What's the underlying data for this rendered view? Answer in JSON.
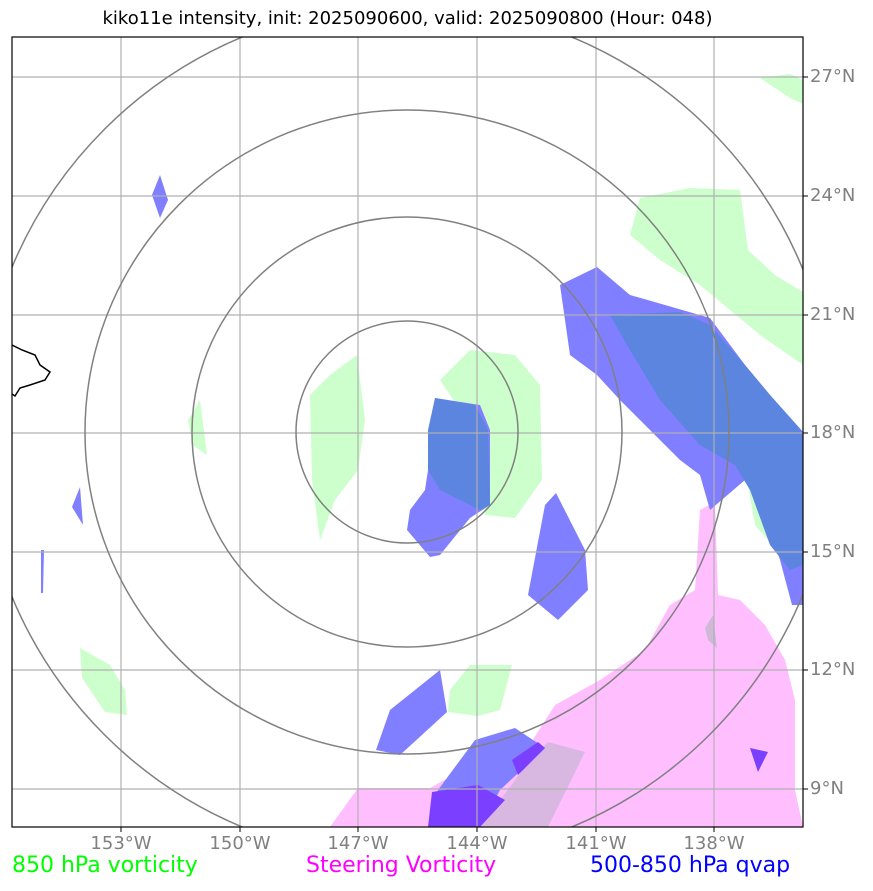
{
  "title": "kiko11e intensity, init: 2025090600, valid: 2025090800 (Hour: 048)",
  "lat_labels": [
    "27°N",
    "24°N",
    "21°N",
    "18°N",
    "15°N",
    "12°N",
    "9°N"
  ],
  "lon_labels": [
    "153°W",
    "150°W",
    "147°W",
    "144°W",
    "141°W",
    "138°W"
  ],
  "legend": {
    "vorticity_850": {
      "label": "850 hPa vorticity",
      "color": "#00ff00"
    },
    "steering": {
      "label": "Steering Vorticity",
      "color": "#ff00ff"
    },
    "qvap": {
      "label": "500-850 hPa qvap",
      "color": "#0000ff"
    }
  },
  "colors": {
    "vorticity_850_fill": "#ccffcc",
    "steering_fill": "#ffbfff",
    "qvap_fill": "#7f7fff",
    "overlap_fill": "#5c85e0",
    "grid": "#b0b0b0",
    "range_rings": "#808080",
    "coastline": "#000000"
  }
}
